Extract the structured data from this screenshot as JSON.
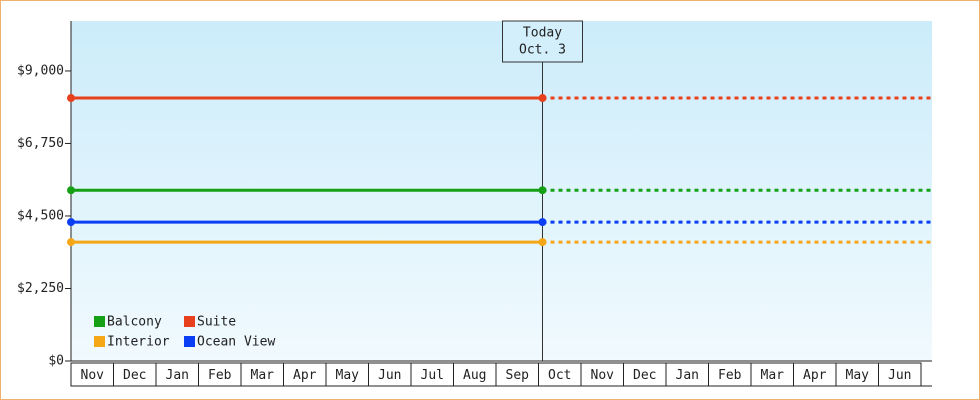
{
  "chart_data": {
    "type": "line",
    "categories": [
      "Nov",
      "Dec",
      "Jan",
      "Feb",
      "Mar",
      "Apr",
      "May",
      "Jun",
      "Jul",
      "Aug",
      "Sep",
      "Oct",
      "Nov",
      "Dec",
      "Jan",
      "Feb",
      "Mar",
      "Apr",
      "May",
      "Jun"
    ],
    "today_index": 11,
    "annotation": [
      "Today",
      "Oct. 3"
    ],
    "series": [
      {
        "name": "Balcony",
        "color": "#16a016",
        "value": 5300
      },
      {
        "name": "Suite",
        "color": "#e8401c",
        "value": 8160
      },
      {
        "name": "Interior",
        "color": "#f5a716",
        "value": 3690
      },
      {
        "name": "Ocean View",
        "color": "#0a3ef5",
        "value": 4310
      }
    ],
    "ylim": [
      0,
      10550
    ],
    "yticks": [
      {
        "value": 0,
        "label": "$0"
      },
      {
        "value": 2250,
        "label": "$2,250"
      },
      {
        "value": 4500,
        "label": "$4,500"
      },
      {
        "value": 6750,
        "label": "$6,750"
      },
      {
        "value": 9000,
        "label": "$9,000"
      }
    ]
  }
}
